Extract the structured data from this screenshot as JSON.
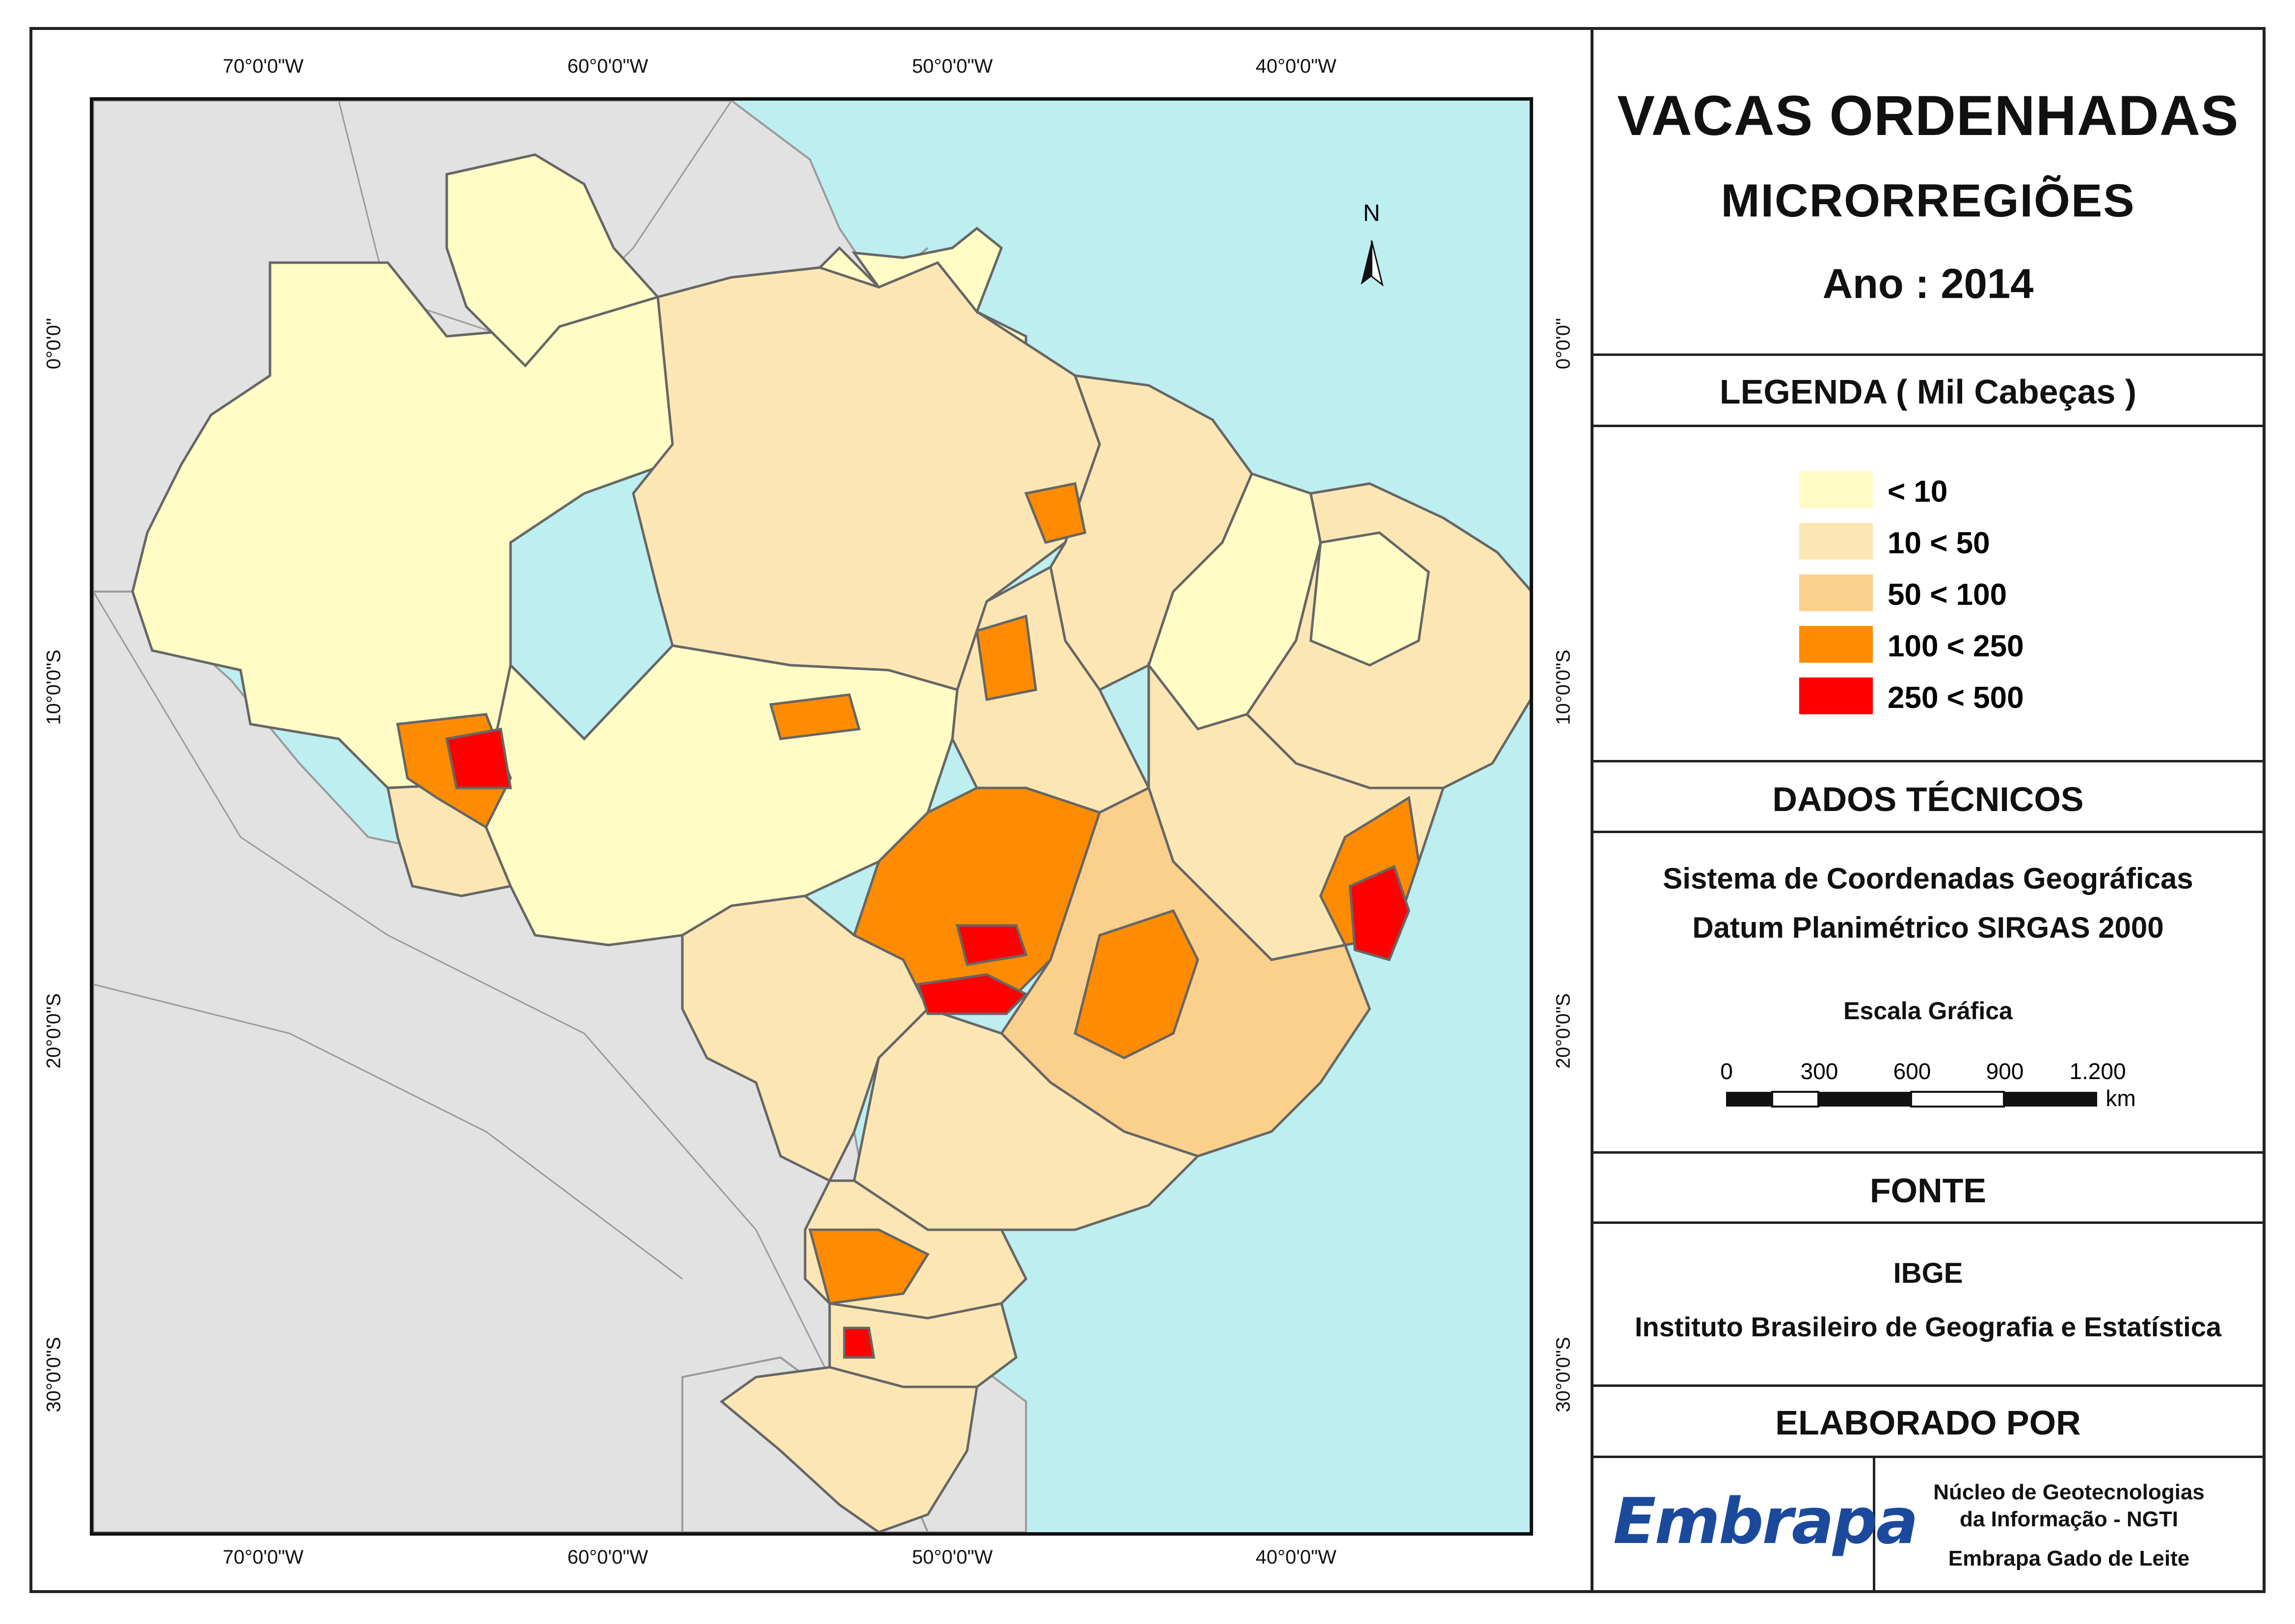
{
  "title": "VACAS ORDENHADAS",
  "subtitle": "MICRORREGIÕES",
  "year_label": "Ano : 2014",
  "legend": {
    "heading": "LEGENDA ( Mil Cabeças )",
    "items": [
      {
        "label": "< 10",
        "color": "#fffcc5"
      },
      {
        "label": "10 < 50",
        "color": "#fce7b4"
      },
      {
        "label": "50 < 100",
        "color": "#fbd08c"
      },
      {
        "label": "100 < 250",
        "color": "#ff8c00"
      },
      {
        "label": "250 < 500",
        "color": "#ff0000"
      }
    ]
  },
  "technical": {
    "heading": "DADOS TÉCNICOS",
    "line1": "Sistema de Coordenadas Geográficas",
    "line2": "Datum Planimétrico SIRGAS 2000",
    "scale_title": "Escala Gráfica",
    "scale_labels": [
      "0",
      "300",
      "600",
      "900",
      "1.200"
    ],
    "scale_unit": "km"
  },
  "source": {
    "heading": "FONTE",
    "line1": "IBGE",
    "line2": "Instituto Brasileiro de Geografia e Estatística"
  },
  "credits": {
    "heading": "ELABORADO POR",
    "logo_text": "Embrapa",
    "line1": "Núcleo de Geotecnologias",
    "line2": "da Informação - NGTI",
    "line3": "Embrapa Gado de Leite"
  },
  "map": {
    "north_label": "N",
    "longitude_ticks": [
      "70°0'0\"W",
      "60°0'0\"W",
      "50°0'0\"W",
      "40°0'0\"W"
    ],
    "latitude_ticks": [
      "0°0'0\"",
      "10°0'0\"S",
      "20°0'0\"S",
      "30°0'0\"S"
    ],
    "colors": {
      "ocean": "#bdeef0",
      "neighbors": "#e2e2e2",
      "borders": "#555555"
    }
  }
}
